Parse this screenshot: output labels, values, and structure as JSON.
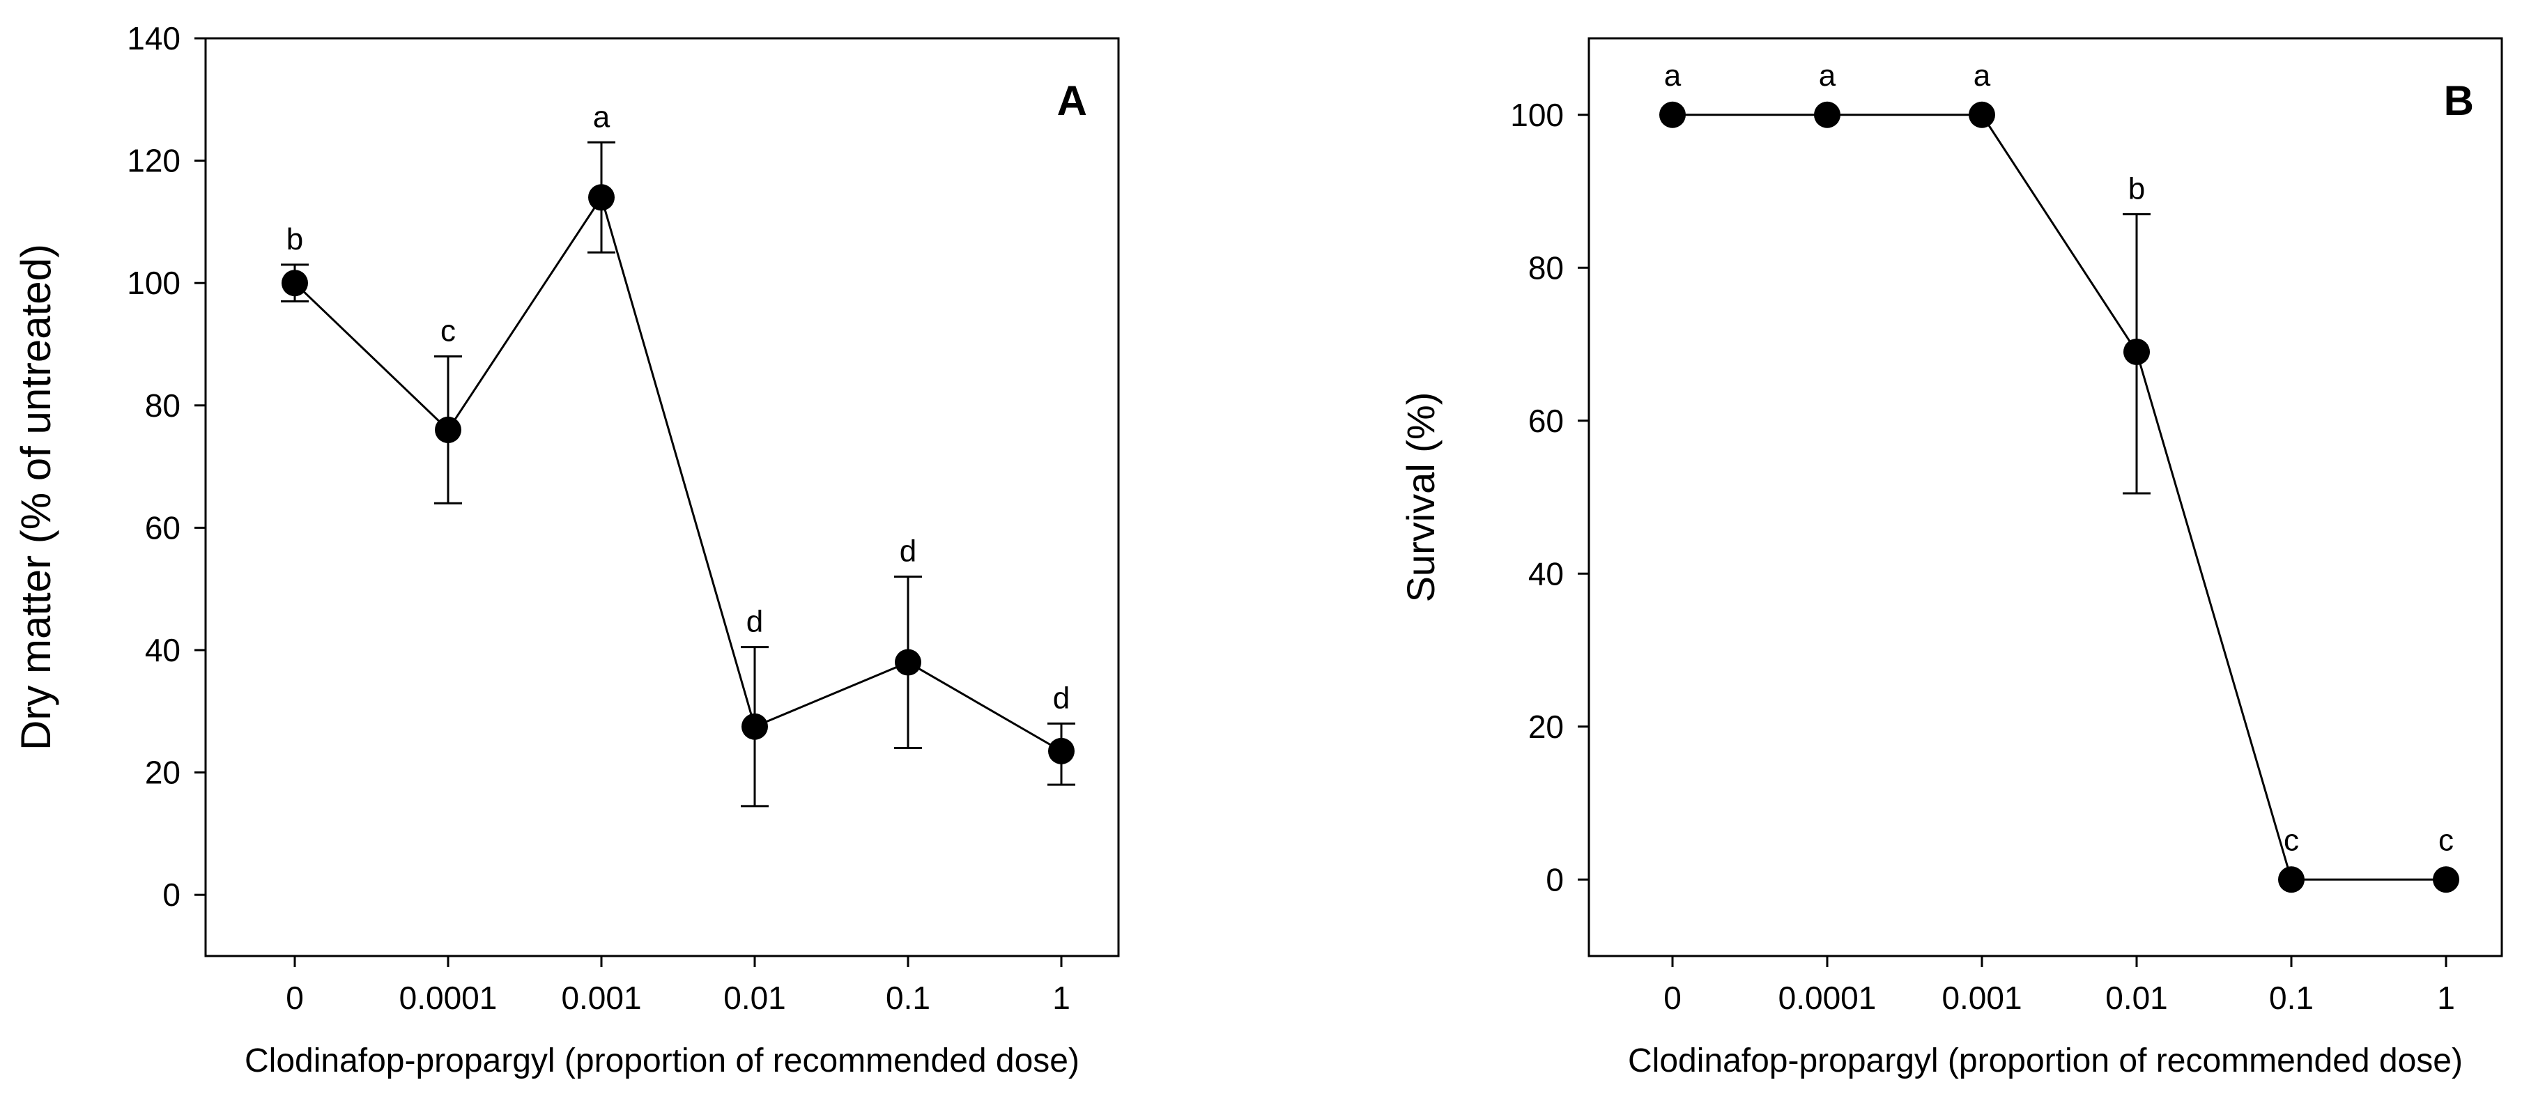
{
  "chart_data": [
    {
      "type": "line",
      "panel": "A",
      "categories": [
        "0",
        "0.0001",
        "0.001",
        "0.01",
        "0.1",
        "1"
      ],
      "values": [
        100,
        76,
        114,
        27.5,
        38,
        23.5
      ],
      "error_upper": [
        103,
        88,
        123,
        40.5,
        52,
        28
      ],
      "error_lower": [
        97,
        64,
        105,
        14.5,
        24,
        18
      ],
      "significance": [
        "b",
        "c",
        "a",
        "d",
        "d",
        "d"
      ],
      "xlabel": "Clodinafop-propargyl (proportion of recommended dose)",
      "ylabel": "Dry matter (% of untreated)",
      "ylim": [
        -10,
        140
      ],
      "yticks": [
        0,
        20,
        40,
        60,
        80,
        100,
        120,
        140
      ],
      "grid": false,
      "legend": "none"
    },
    {
      "type": "line",
      "panel": "B",
      "categories": [
        "0",
        "0.0001",
        "0.001",
        "0.01",
        "0.1",
        "1"
      ],
      "values": [
        100,
        100,
        100,
        69,
        0,
        0
      ],
      "error_upper": [
        100,
        100,
        100,
        87,
        0,
        0
      ],
      "error_lower": [
        100,
        100,
        100,
        50.5,
        0,
        0
      ],
      "significance": [
        "a",
        "a",
        "a",
        "b",
        "c",
        "c"
      ],
      "xlabel": "Clodinafop-propargyl (proportion of recommended dose)",
      "ylabel": "Survival (%)",
      "ylim": [
        -10,
        110
      ],
      "yticks": [
        0,
        20,
        40,
        60,
        80,
        100
      ],
      "grid": false,
      "legend": "none"
    }
  ]
}
